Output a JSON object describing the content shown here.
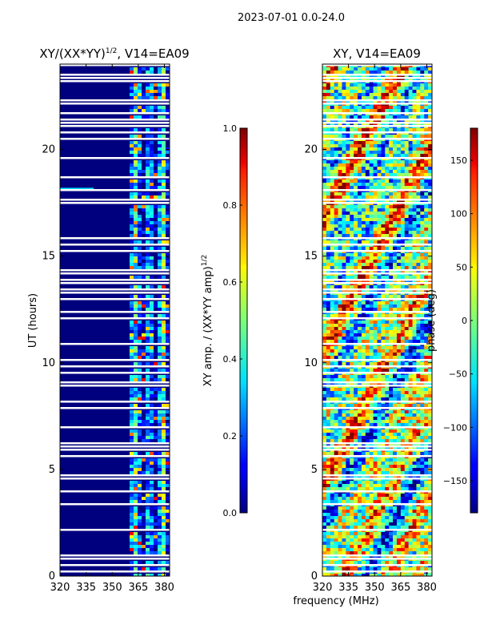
{
  "figure": {
    "suptitle": "2023-07-01 0.0-24.0",
    "xlabel": "frequency (MHz)"
  },
  "chart_data": [
    {
      "type": "heatmap",
      "title_main": "XY/(XX*YY)",
      "title_sup": "1/2",
      "title_tail": ", V14=EA09",
      "xlabel": "",
      "ylabel": "UT (hours)",
      "xlim": [
        320,
        383
      ],
      "ylim": [
        0,
        24
      ],
      "xticks": [
        320,
        335,
        350,
        365,
        380
      ],
      "yticks": [
        0,
        5,
        10,
        15,
        20
      ],
      "colorbar": {
        "label_main": "XY amp. / (XX*YY amp)",
        "label_sup": "1/2",
        "range": [
          0.0,
          1.0
        ],
        "ticks": [
          "0.0",
          "0.2",
          "0.4",
          "0.6",
          "0.8",
          "1.0"
        ],
        "tick_values": [
          0.0,
          0.2,
          0.4,
          0.6,
          0.8,
          1.0
        ]
      },
      "band": {
        "x_start": 360,
        "x_end": 383
      },
      "colormap": "jet"
    },
    {
      "type": "heatmap",
      "title": "XY, V14=EA09",
      "xlabel": "frequency (MHz)",
      "ylabel": "",
      "xlim": [
        320,
        383
      ],
      "ylim": [
        0,
        24
      ],
      "xticks": [
        320,
        335,
        350,
        365,
        380
      ],
      "yticks": [
        0,
        5,
        10,
        15,
        20
      ],
      "colorbar": {
        "label": "phase (deg)",
        "range": [
          -180,
          180
        ],
        "ticks": [
          "150",
          "100",
          "50",
          "0",
          "−50",
          "−100",
          "−150"
        ],
        "tick_values": [
          150,
          100,
          50,
          0,
          -50,
          -100,
          -150
        ]
      },
      "colormap": "jet"
    }
  ]
}
